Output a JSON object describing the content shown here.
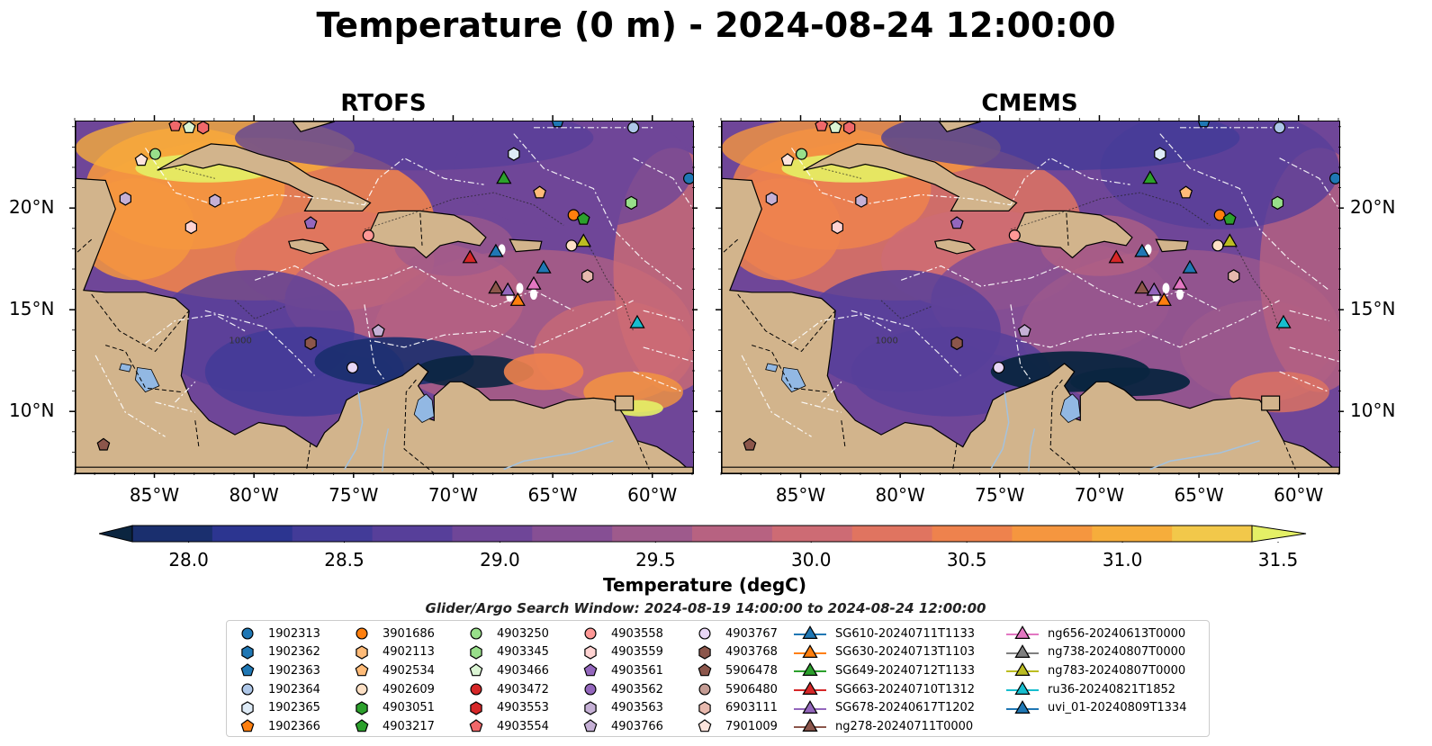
{
  "title": "Temperature (0 m) - 2024-08-24 12:00:00",
  "panels": [
    {
      "name": "RTOFS"
    },
    {
      "name": "CMEMS"
    }
  ],
  "lon_ticks": [
    "85°W",
    "80°W",
    "75°W",
    "70°W",
    "65°W",
    "60°W"
  ],
  "lat_ticks": [
    "20°N",
    "15°N",
    "10°N"
  ],
  "map_extent": {
    "lon": [
      -89,
      -58
    ],
    "lat": [
      7,
      24.3
    ]
  },
  "colorbar": {
    "ticks": [
      "28.0",
      "28.5",
      "29.0",
      "29.5",
      "30.0",
      "30.5",
      "31.0",
      "31.5"
    ],
    "range": [
      27.8,
      31.7
    ],
    "label": "Temperature (degC)",
    "colors": [
      "#0b2540",
      "#1a2f6e",
      "#2c3590",
      "#423b98",
      "#573f9a",
      "#6f4698",
      "#864f94",
      "#9e5a8c",
      "#b76281",
      "#cd6b74",
      "#e07460",
      "#ee824d",
      "#f5963f",
      "#f6ad3b",
      "#f2c84a",
      "#e4f066"
    ]
  },
  "search_window": "Glider/Argo Search Window: 2024-08-19 14:00:00 to 2024-08-24 12:00:00",
  "isobath_label": "1000",
  "legend": {
    "columns": [
      [
        {
          "label": "1902313",
          "marker": "circle",
          "color": "#1f77b4"
        },
        {
          "label": "1902362",
          "marker": "hexagon",
          "color": "#1f77b4"
        },
        {
          "label": "1902363",
          "marker": "pentagon",
          "color": "#1f77b4"
        },
        {
          "label": "1902364",
          "marker": "circle",
          "color": "#aec7e8"
        },
        {
          "label": "1902365",
          "marker": "hexagon",
          "color": "#deebf7"
        },
        {
          "label": "1902366",
          "marker": "pentagon",
          "color": "#ff7f0e"
        }
      ],
      [
        {
          "label": "3901686",
          "marker": "circle",
          "color": "#ff7f0e"
        },
        {
          "label": "4902113",
          "marker": "hexagon",
          "color": "#ffbb78"
        },
        {
          "label": "4902534",
          "marker": "pentagon",
          "color": "#ffbb78"
        },
        {
          "label": "4902609",
          "marker": "circle",
          "color": "#fde0c5"
        },
        {
          "label": "4903051",
          "marker": "hexagon",
          "color": "#2ca02c"
        },
        {
          "label": "4903217",
          "marker": "pentagon",
          "color": "#2ca02c"
        }
      ],
      [
        {
          "label": "4903250",
          "marker": "circle",
          "color": "#98df8a"
        },
        {
          "label": "4903345",
          "marker": "hexagon",
          "color": "#98df8a"
        },
        {
          "label": "4903466",
          "marker": "pentagon",
          "color": "#dbf5d4"
        },
        {
          "label": "4903472",
          "marker": "circle",
          "color": "#d62728"
        },
        {
          "label": "4903553",
          "marker": "hexagon",
          "color": "#d62728"
        },
        {
          "label": "4903554",
          "marker": "pentagon",
          "color": "#f0686a"
        }
      ],
      [
        {
          "label": "4903558",
          "marker": "circle",
          "color": "#ff9896"
        },
        {
          "label": "4903559",
          "marker": "hexagon",
          "color": "#ffd3d2"
        },
        {
          "label": "4903561",
          "marker": "pentagon",
          "color": "#9467bd"
        },
        {
          "label": "4903562",
          "marker": "circle",
          "color": "#9467bd"
        },
        {
          "label": "4903563",
          "marker": "hexagon",
          "color": "#c5b0d5"
        },
        {
          "label": "4903766",
          "marker": "pentagon",
          "color": "#c5b0d5"
        }
      ],
      [
        {
          "label": "4903767",
          "marker": "circle",
          "color": "#e8d6f5"
        },
        {
          "label": "4903768",
          "marker": "hexagon",
          "color": "#8c564b"
        },
        {
          "label": "5906478",
          "marker": "pentagon",
          "color": "#8c564b"
        },
        {
          "label": "5906480",
          "marker": "circle",
          "color": "#c49c94"
        },
        {
          "label": "6903111",
          "marker": "hexagon",
          "color": "#e7b9ae"
        },
        {
          "label": "7901009",
          "marker": "pentagon",
          "color": "#fde4dc"
        }
      ],
      [
        {
          "label": "SG610-20240711T1133",
          "marker": "triangle",
          "color": "#1f77b4"
        },
        {
          "label": "SG630-20240713T1103",
          "marker": "triangle",
          "color": "#ff7f0e"
        },
        {
          "label": "SG649-20240712T1133",
          "marker": "triangle",
          "color": "#2ca02c"
        },
        {
          "label": "SG663-20240710T1312",
          "marker": "triangle",
          "color": "#d62728"
        },
        {
          "label": "SG678-20240617T1202",
          "marker": "triangle",
          "color": "#9467bd"
        },
        {
          "label": "ng278-20240711T0000",
          "marker": "triangle",
          "color": "#8c564b"
        }
      ],
      [
        {
          "label": "ng656-20240613T0000",
          "marker": "triangle",
          "color": "#e377c2"
        },
        {
          "label": "ng738-20240807T0000",
          "marker": "triangle",
          "color": "#7f7f7f"
        },
        {
          "label": "ng783-20240807T0000",
          "marker": "triangle",
          "color": "#bcbd22"
        },
        {
          "label": "ru36-20240821T1852",
          "marker": "triangle",
          "color": "#17becf"
        },
        {
          "label": "uvi_01-20240809T1334",
          "marker": "triangle",
          "color": "#1f77b4"
        }
      ]
    ]
  },
  "map_markers": [
    {
      "lon": -86.5,
      "lat": 20.5,
      "marker": "hexagon",
      "color": "#c5b0d5"
    },
    {
      "lon": -85.0,
      "lat": 22.7,
      "marker": "circle",
      "color": "#98df8a"
    },
    {
      "lon": -85.7,
      "lat": 22.4,
      "marker": "pentagon",
      "color": "#fde4dc"
    },
    {
      "lon": -83.3,
      "lat": 24.0,
      "marker": "pentagon",
      "color": "#dbf5d4"
    },
    {
      "lon": -82.6,
      "lat": 24.0,
      "marker": "hexagon",
      "color": "#f0686a"
    },
    {
      "lon": -84.0,
      "lat": 24.1,
      "marker": "pentagon",
      "color": "#f0686a"
    },
    {
      "lon": -82.0,
      "lat": 20.4,
      "marker": "hexagon",
      "color": "#c5b0d5"
    },
    {
      "lon": -83.2,
      "lat": 19.1,
      "marker": "hexagon",
      "color": "#ffd3d2"
    },
    {
      "lon": -77.2,
      "lat": 19.3,
      "marker": "pentagon",
      "color": "#9467bd"
    },
    {
      "lon": -74.3,
      "lat": 18.7,
      "marker": "circle",
      "color": "#ff9896"
    },
    {
      "lon": -77.2,
      "lat": 13.4,
      "marker": "hexagon",
      "color": "#8c564b"
    },
    {
      "lon": -73.8,
      "lat": 14.0,
      "marker": "pentagon",
      "color": "#c5b0d5"
    },
    {
      "lon": -75.1,
      "lat": 12.2,
      "marker": "circle",
      "color": "#e8d6f5"
    },
    {
      "lon": -87.6,
      "lat": 8.4,
      "marker": "pentagon",
      "color": "#8c564b"
    },
    {
      "lon": -67.0,
      "lat": 22.7,
      "marker": "hexagon",
      "color": "#deebf7"
    },
    {
      "lon": -65.7,
      "lat": 20.8,
      "marker": "pentagon",
      "color": "#ffbb78"
    },
    {
      "lon": -64.0,
      "lat": 19.7,
      "marker": "circle",
      "color": "#ff7f0e"
    },
    {
      "lon": -63.5,
      "lat": 19.5,
      "marker": "pentagon",
      "color": "#2ca02c"
    },
    {
      "lon": -64.1,
      "lat": 18.2,
      "marker": "circle",
      "color": "#fde0c5"
    },
    {
      "lon": -61.1,
      "lat": 20.3,
      "marker": "hexagon",
      "color": "#98df8a"
    },
    {
      "lon": -63.3,
      "lat": 16.7,
      "marker": "hexagon",
      "color": "#e7b9ae"
    },
    {
      "lon": -61.0,
      "lat": 24.0,
      "marker": "circle",
      "color": "#aec7e8"
    },
    {
      "lon": -58.2,
      "lat": 21.5,
      "marker": "circle",
      "color": "#1f77b4"
    },
    {
      "lon": -64.8,
      "lat": 24.3,
      "marker": "pentagon",
      "color": "#1f77b4"
    },
    {
      "lon": -67.5,
      "lat": 21.5,
      "marker": "triangle",
      "color": "#2ca02c"
    },
    {
      "lon": -67.9,
      "lat": 17.9,
      "marker": "triangle",
      "color": "#1f77b4"
    },
    {
      "lon": -69.2,
      "lat": 17.6,
      "marker": "triangle",
      "color": "#d62728"
    },
    {
      "lon": -65.5,
      "lat": 17.1,
      "marker": "triangle",
      "color": "#1f77b4"
    },
    {
      "lon": -63.5,
      "lat": 18.4,
      "marker": "triangle",
      "color": "#bcbd22"
    },
    {
      "lon": -67.9,
      "lat": 16.1,
      "marker": "triangle",
      "color": "#8c564b"
    },
    {
      "lon": -67.3,
      "lat": 16.0,
      "marker": "triangle",
      "color": "#9467bd"
    },
    {
      "lon": -66.0,
      "lat": 16.3,
      "marker": "triangle",
      "color": "#e377c2"
    },
    {
      "lon": -66.8,
      "lat": 15.5,
      "marker": "triangle",
      "color": "#ff7f0e"
    },
    {
      "lon": -60.8,
      "lat": 14.4,
      "marker": "triangle",
      "color": "#17becf"
    }
  ]
}
